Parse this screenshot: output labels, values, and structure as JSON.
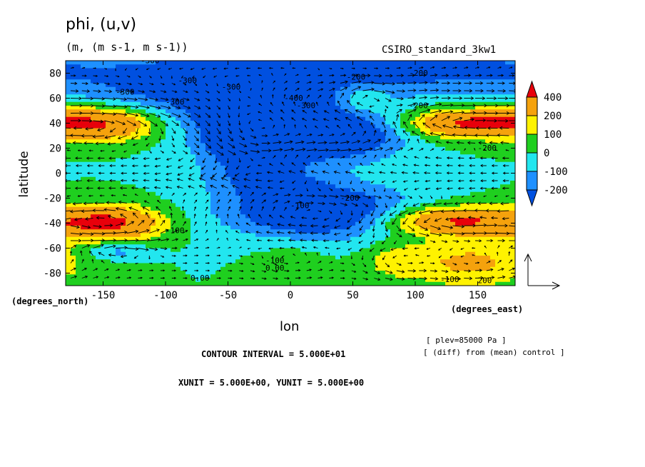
{
  "header": {
    "title": "phi, (u,v)",
    "units": "(m, (m s-1, m s-1))",
    "model": "CSIRO_standard_3kw1"
  },
  "axes": {
    "xlabel": "lon",
    "ylabel": "latitude",
    "x_unit_label": "(degrees_east)",
    "y_unit_label": "(degrees_north)",
    "x_ticks": [
      "-150",
      "-100",
      "-50",
      "0",
      "50",
      "100",
      "150"
    ],
    "y_ticks": [
      "80",
      "60",
      "40",
      "20",
      "0",
      "-20",
      "-40",
      "-60",
      "-80"
    ]
  },
  "footer": {
    "contour_interval": "CONTOUR INTERVAL = 5.000E+01",
    "units_line": "XUNIT = 5.000E+00, YUNIT = 5.000E+00",
    "plev": "[ plev=85000 Pa ]",
    "diff": "[ (diff) from (mean) control ]"
  },
  "colorbar": {
    "labels": [
      "400",
      "200",
      "100",
      "0",
      "-100",
      "-200"
    ],
    "colors": [
      "#e8000b",
      "#f5a20d",
      "#fff200",
      "#1fcf1f",
      "#22e6ef",
      "#1e90ff",
      "#0050e0"
    ]
  },
  "contour_labels": [
    "-300",
    "-300",
    "-300",
    "-400",
    "-300",
    "-200",
    "-200",
    "-300",
    "-300",
    "-200",
    "-200",
    "-200",
    "-100",
    "-100",
    "-100",
    "0.00",
    "0.00",
    "-100",
    "200"
  ],
  "chart_data": {
    "type": "heatmap",
    "title": "phi, (u,v)",
    "subtitle": "(m, (m s-1, m s-1))",
    "xlabel": "lon",
    "ylabel": "latitude",
    "xlim": [
      -180,
      180
    ],
    "ylim": [
      -90,
      90
    ],
    "x_ticks": [
      -150,
      -100,
      -50,
      0,
      50,
      100,
      150
    ],
    "y_ticks": [
      80,
      60,
      40,
      20,
      0,
      -20,
      -40,
      -60,
      -80
    ],
    "contour_interval": 50,
    "levels": [
      -200,
      -100,
      0,
      100,
      200,
      400
    ],
    "blobs": [
      {
        "lon": -150,
        "lat": 40,
        "sx": 32,
        "sy": 10,
        "amp": 430
      },
      {
        "lon": -145,
        "lat": -40,
        "sx": 30,
        "sy": 10,
        "amp": 430
      },
      {
        "lon": 140,
        "lat": 40,
        "sx": 34,
        "sy": 8,
        "amp": 420
      },
      {
        "lon": 130,
        "lat": -38,
        "sx": 38,
        "sy": 8,
        "amp": 420
      },
      {
        "lon": 145,
        "lat": -72,
        "sx": 35,
        "sy": 14,
        "amp": 230
      },
      {
        "lon": 85,
        "lat": -70,
        "sx": 18,
        "sy": 10,
        "amp": 140
      },
      {
        "lon": -30,
        "lat": 30,
        "sx": 30,
        "sy": 20,
        "amp": -420
      },
      {
        "lon": 40,
        "lat": 30,
        "sx": 35,
        "sy": 14,
        "amp": -360
      },
      {
        "lon": 20,
        "lat": -30,
        "sx": 50,
        "sy": 15,
        "amp": -400
      },
      {
        "lon": -60,
        "lat": 70,
        "sx": 80,
        "sy": 22,
        "amp": -300
      },
      {
        "lon": 100,
        "lat": 85,
        "sx": 70,
        "sy": 14,
        "amp": -250
      },
      {
        "lon": -20,
        "lat": -5,
        "sx": 35,
        "sy": 10,
        "amp": -120
      },
      {
        "lon": -140,
        "lat": -62,
        "sx": 18,
        "sy": 5,
        "amp": -160
      },
      {
        "lon": 60,
        "lat": 60,
        "sx": 12,
        "sy": 8,
        "amp": 150
      },
      {
        "lon": 0,
        "lat": -70,
        "sx": 20,
        "sy": 12,
        "amp": 60
      }
    ]
  }
}
